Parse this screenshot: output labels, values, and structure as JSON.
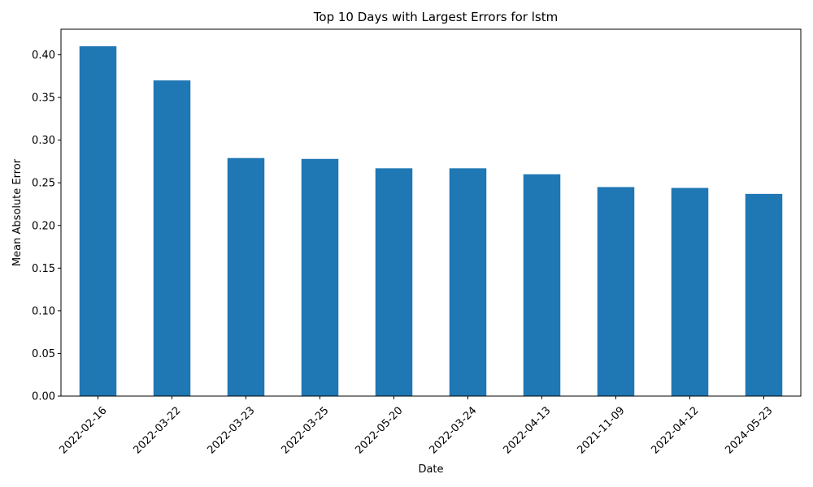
{
  "chart_data": {
    "type": "bar",
    "title": "Top 10 Days with Largest Errors for lstm",
    "xlabel": "Date",
    "ylabel": "Mean Absolute Error",
    "categories": [
      "2022-02-16",
      "2022-03-22",
      "2022-03-23",
      "2022-03-25",
      "2022-05-20",
      "2022-03-24",
      "2022-04-13",
      "2021-11-09",
      "2022-04-12",
      "2024-05-23"
    ],
    "values": [
      0.41,
      0.37,
      0.279,
      0.278,
      0.267,
      0.267,
      0.26,
      0.245,
      0.244,
      0.237
    ],
    "ylim": [
      0,
      0.43
    ],
    "yticks": [
      0.0,
      0.05,
      0.1,
      0.15,
      0.2,
      0.25,
      0.3,
      0.35,
      0.4
    ],
    "ytick_labels": [
      "0.00",
      "0.05",
      "0.10",
      "0.15",
      "0.20",
      "0.25",
      "0.30",
      "0.35",
      "0.40"
    ],
    "grid": false,
    "legend": "none",
    "bar_color": "#1f77b4",
    "x_tick_rotation": 45
  }
}
